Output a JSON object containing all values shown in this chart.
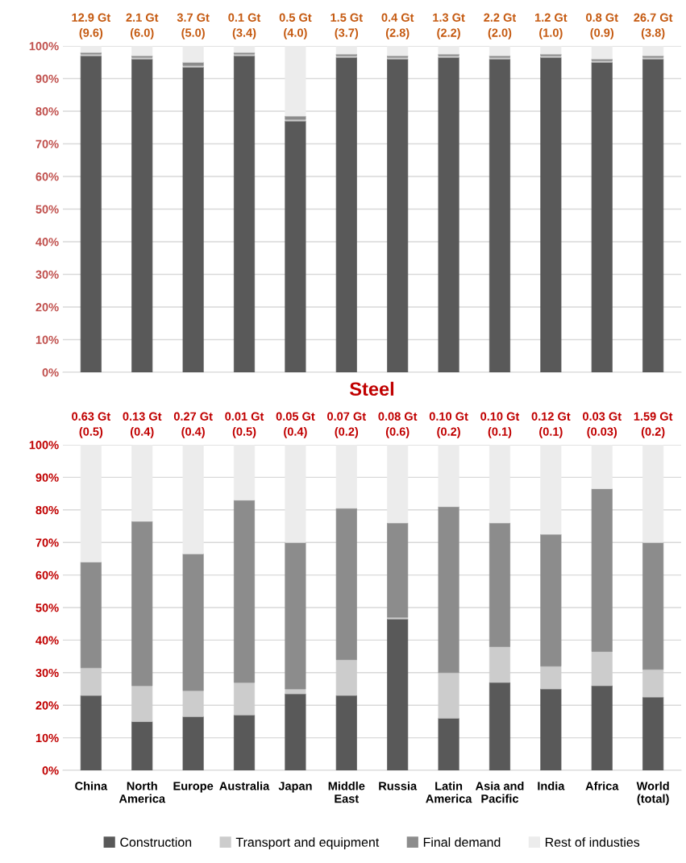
{
  "chart_data": [
    {
      "type": "bar",
      "stacked": true,
      "grid": "y",
      "categories": [
        null,
        null,
        null,
        null,
        null,
        null,
        null,
        null,
        null,
        null,
        null,
        null
      ],
      "series": [
        {
          "color": "#595959",
          "values": [
            97,
            96,
            93.5,
            97,
            77,
            96.5,
            96,
            96.5,
            96,
            96.5,
            95,
            96
          ]
        },
        {
          "color": "#cccccc",
          "values": [
            0.5,
            0.5,
            0.5,
            0.5,
            0.5,
            0.5,
            0.5,
            0.5,
            0.5,
            0.5,
            0.5,
            0.5
          ]
        },
        {
          "color": "#8c8c8c",
          "values": [
            0.5,
            0.5,
            1,
            0.5,
            1,
            0.5,
            0.5,
            0.5,
            0.5,
            0.5,
            0.5,
            0.5
          ]
        },
        {
          "color": "#ececec",
          "values": [
            2,
            3,
            5,
            2,
            21.5,
            2.5,
            3,
            2.5,
            3,
            2.5,
            4,
            3
          ]
        }
      ],
      "totals": [
        "12.9 Gt\n(9.6)",
        "2.1 Gt\n(6.0)",
        "3.7 Gt\n(5.0)",
        "0.1 Gt\n(3.4)",
        "0.5 Gt\n(4.0)",
        "1.5 Gt\n(3.7)",
        "0.4 Gt\n(2.8)",
        "1.3 Gt\n(2.2)",
        "2.2 Gt\n(2.0)",
        "1.2 Gt\n(1.0)",
        "0.8 Gt\n(0.9)",
        "26.7 Gt\n(3.8)"
      ],
      "ylim": [
        0,
        100
      ],
      "yticks": [
        {
          "value": 0,
          "label": "0%"
        },
        {
          "value": 10,
          "label": "10%"
        },
        {
          "value": 20,
          "label": "20%"
        },
        {
          "value": 30,
          "label": "30%"
        },
        {
          "value": 40,
          "label": "40%"
        },
        {
          "value": 50,
          "label": "50%"
        },
        {
          "value": 60,
          "label": "60%"
        },
        {
          "value": 70,
          "label": "70%"
        },
        {
          "value": 80,
          "label": "80%"
        },
        {
          "value": 90,
          "label": "90%"
        },
        {
          "value": 100,
          "label": "100%"
        }
      ]
    },
    {
      "type": "bar",
      "stacked": true,
      "title": "Steel",
      "legend": "bottom",
      "grid": "y",
      "categories": [
        "China",
        "North\nAmerica",
        "Europe",
        "Australia",
        "Japan",
        "Middle\nEast",
        "Russia",
        "Latin\nAmerica",
        "Asia and\nPacific",
        "India",
        "Africa",
        "World\n(total)"
      ],
      "series": [
        {
          "name": "Construction",
          "color": "#595959",
          "values": [
            23,
            15,
            16.5,
            17,
            23.5,
            23,
            46.5,
            16,
            27,
            25,
            26,
            22.5
          ]
        },
        {
          "name": "Transport and equipment",
          "color": "#cccccc",
          "values": [
            8.5,
            11,
            8,
            10,
            1.5,
            11,
            0.5,
            14,
            11,
            7,
            10.5,
            8.5
          ]
        },
        {
          "name": "Final demand",
          "color": "#8c8c8c",
          "values": [
            32.5,
            50.5,
            42,
            56,
            45,
            46.5,
            29,
            51,
            38,
            40.5,
            50,
            39
          ]
        },
        {
          "name": "Rest of industies",
          "color": "#ececec",
          "values": [
            36,
            23.5,
            33.5,
            17,
            30,
            19.5,
            24,
            19,
            24,
            27.5,
            13.5,
            30
          ]
        }
      ],
      "totals": [
        "0.63 Gt\n(0.5)",
        "0.13 Gt\n(0.4)",
        "0.27 Gt\n(0.4)",
        "0.01 Gt\n(0.5)",
        "0.05 Gt\n(0.4)",
        "0.07 Gt\n(0.2)",
        "0.08 Gt\n(0.6)",
        "0.10 Gt\n(0.2)",
        "0.10 Gt\n(0.1)",
        "0.12 Gt\n(0.1)",
        "0.03 Gt\n(0.03)",
        "1.59 Gt\n(0.2)"
      ],
      "ylim": [
        0,
        100
      ],
      "yticks": [
        {
          "value": 0,
          "label": "0%"
        },
        {
          "value": 10,
          "label": "10%"
        },
        {
          "value": 20,
          "label": "20%"
        },
        {
          "value": 30,
          "label": "30%"
        },
        {
          "value": 40,
          "label": "40%"
        },
        {
          "value": 50,
          "label": "50%"
        },
        {
          "value": 60,
          "label": "60%"
        },
        {
          "value": 70,
          "label": "70%"
        },
        {
          "value": 80,
          "label": "80%"
        },
        {
          "value": 90,
          "label": "90%"
        },
        {
          "value": 100,
          "label": "100%"
        }
      ]
    }
  ]
}
